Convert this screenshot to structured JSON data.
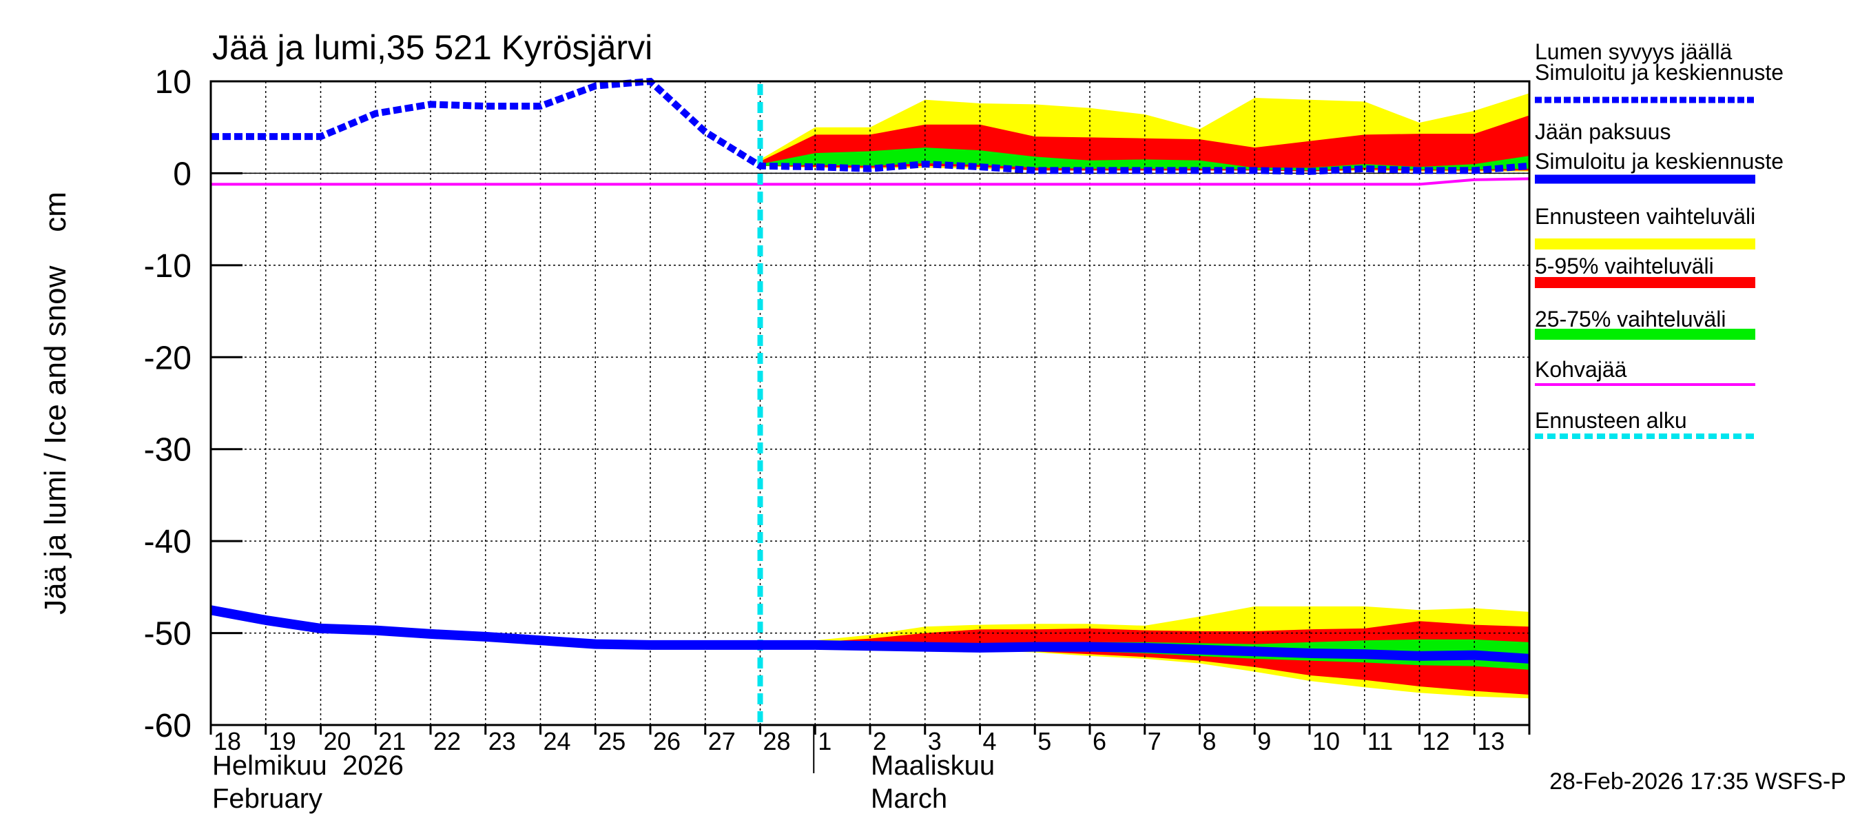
{
  "chart_data": {
    "type": "area",
    "title": "Jää ja lumi,35 521 Kyrösjärvi",
    "ylabel": "Jää ja lumi / Ice and snow    cm",
    "ylim": [
      -60,
      10
    ],
    "yticks": [
      10,
      0,
      -10,
      -20,
      -30,
      -40,
      -50,
      -60
    ],
    "ytick_labels": [
      "10",
      "0",
      "-10",
      "-20",
      "-30",
      "-40",
      "-50",
      "-60"
    ],
    "xlim": [
      0,
      24
    ],
    "x_day_labels": [
      "18",
      "19",
      "20",
      "21",
      "22",
      "23",
      "24",
      "25",
      "26",
      "27",
      "28",
      "1",
      "2",
      "3",
      "4",
      "5",
      "6",
      "7",
      "8",
      "9",
      "10",
      "11",
      "12",
      "13"
    ],
    "month_labels": {
      "feb_fi": "Helmikuu  2026",
      "feb_en": "February",
      "mar_fi": "Maaliskuu",
      "mar_en": "March"
    },
    "month_boundary_x": 11,
    "forecast_start_x": 10,
    "timestamp": "28-Feb-2026 17:35 WSFS-P",
    "legend": [
      {
        "id": "snow",
        "line1": "Lumen syvyys jäällä",
        "line2": "Simuloitu ja keskiennuste",
        "color": "#0000ff",
        "style": "dotted"
      },
      {
        "id": "ice",
        "line1": "Jään paksuus",
        "line2": "Simuloitu ja keskiennuste",
        "color": "#0000ff",
        "style": "solid"
      },
      {
        "id": "range",
        "line1": "Ennusteen vaihteluväli",
        "color": "#ffff00",
        "style": "band"
      },
      {
        "id": "p595",
        "line1": "5-95% vaihteluväli",
        "color": "#ff0000",
        "style": "band"
      },
      {
        "id": "p2575",
        "line1": "25-75% vaihteluväli",
        "color": "#00ee00",
        "style": "band"
      },
      {
        "id": "kohva",
        "line1": "Kohvajää",
        "color": "#ff00ff",
        "style": "solid"
      },
      {
        "id": "fstart",
        "line1": "Ennusteen alku",
        "color": "#00e5ee",
        "style": "dashed"
      }
    ],
    "snow_depth": {
      "x": [
        0,
        1,
        2,
        3,
        4,
        5,
        6,
        7,
        8,
        9,
        10,
        11,
        12,
        13,
        14,
        15,
        16,
        17,
        18,
        19,
        20,
        21,
        22,
        23,
        24
      ],
      "y": [
        4,
        4,
        4,
        6.5,
        7.5,
        7.3,
        7.3,
        9.5,
        10,
        4.5,
        0.8,
        0.7,
        0.5,
        1,
        0.7,
        0.3,
        0.3,
        0.3,
        0.3,
        0.3,
        0.2,
        0.5,
        0.3,
        0.3,
        0.8
      ]
    },
    "ice_thickness": {
      "x": [
        0,
        1,
        2,
        3,
        4,
        5,
        6,
        7,
        8,
        9,
        10,
        11,
        12,
        13,
        14,
        15,
        16,
        17,
        18,
        19,
        20,
        21,
        22,
        23,
        24
      ],
      "y": [
        -47.5,
        -48.6,
        -49.5,
        -49.7,
        -50.1,
        -50.4,
        -50.8,
        -51.2,
        -51.3,
        -51.3,
        -51.3,
        -51.3,
        -51.4,
        -51.5,
        -51.6,
        -51.5,
        -51.5,
        -51.6,
        -51.8,
        -52,
        -52.2,
        -52.3,
        -52.5,
        -52.4,
        -52.8
      ]
    },
    "kohvajaa": {
      "x": [
        0,
        22,
        23,
        24
      ],
      "y": [
        -1.2,
        -1.2,
        -0.7,
        -0.6
      ]
    },
    "snow_bands": {
      "x": [
        10,
        11,
        12,
        13,
        14,
        15,
        16,
        17,
        18,
        19,
        20,
        21,
        22,
        23,
        24
      ],
      "range_hi": [
        1.5,
        5,
        5,
        8,
        7.6,
        7.5,
        7.1,
        6.4,
        4.8,
        8.2,
        8,
        7.8,
        5.5,
        6.8,
        8.7
      ],
      "range_lo": [
        0.8,
        0.6,
        0.5,
        0.6,
        0.5,
        0.3,
        0.3,
        0.3,
        0.3,
        0.3,
        0.2,
        0.3,
        0.2,
        0.2,
        0.2
      ],
      "p95": [
        1.3,
        4.2,
        4.2,
        5.3,
        5.3,
        4,
        3.9,
        3.8,
        3.7,
        2.8,
        3.5,
        4.2,
        4.3,
        4.3,
        6.3
      ],
      "p05": [
        0.8,
        0.7,
        0.6,
        0.8,
        0.7,
        0.3,
        0.3,
        0.3,
        0.3,
        0.3,
        0.2,
        0.4,
        0.3,
        0.3,
        0.3
      ],
      "p75": [
        1,
        2.2,
        2.4,
        2.8,
        2.5,
        1.8,
        1.4,
        1.5,
        1.4,
        0.6,
        0.6,
        1,
        0.7,
        1,
        1.9
      ],
      "p25": [
        0.8,
        0.9,
        0.8,
        1.1,
        0.9,
        0.6,
        0.5,
        0.5,
        0.5,
        0.4,
        0.3,
        0.6,
        0.4,
        0.4,
        0.5
      ]
    },
    "ice_bands": {
      "x": [
        10,
        11,
        12,
        13,
        14,
        15,
        16,
        17,
        18,
        19,
        20,
        21,
        22,
        23,
        24
      ],
      "range_hi": [
        -51.2,
        -50.8,
        -50.2,
        -49.3,
        -49.1,
        -49,
        -49,
        -49.2,
        -48.2,
        -47.1,
        -47.1,
        -47.1,
        -47.5,
        -47.3,
        -47.7
      ],
      "range_lo": [
        -51.4,
        -51.6,
        -51.7,
        -51.8,
        -51.9,
        -52.1,
        -52.5,
        -52.8,
        -53.3,
        -54.2,
        -55.2,
        -55.9,
        -56.5,
        -56.9,
        -57.1
      ],
      "p95": [
        -51.3,
        -51.0,
        -50.6,
        -50,
        -49.6,
        -49.6,
        -49.5,
        -49.7,
        -49.8,
        -49.8,
        -49.6,
        -49.5,
        -48.7,
        -49.1,
        -49.3
      ],
      "p05": [
        -51.3,
        -51.4,
        -51.6,
        -51.7,
        -51.8,
        -52,
        -52.3,
        -52.6,
        -53,
        -53.7,
        -54.6,
        -55.1,
        -55.8,
        -56.3,
        -56.7
      ],
      "p75": [
        -51.3,
        -51.2,
        -51.3,
        -51.3,
        -51.3,
        -51.2,
        -51,
        -51,
        -51.1,
        -51.2,
        -51,
        -50.8,
        -50.7,
        -50.7,
        -51
      ],
      "p25": [
        -51.3,
        -51.4,
        -51.5,
        -51.6,
        -51.7,
        -51.8,
        -52.0,
        -52.2,
        -52.5,
        -52.8,
        -53,
        -53.2,
        -53.5,
        -53.6,
        -54
      ]
    }
  }
}
